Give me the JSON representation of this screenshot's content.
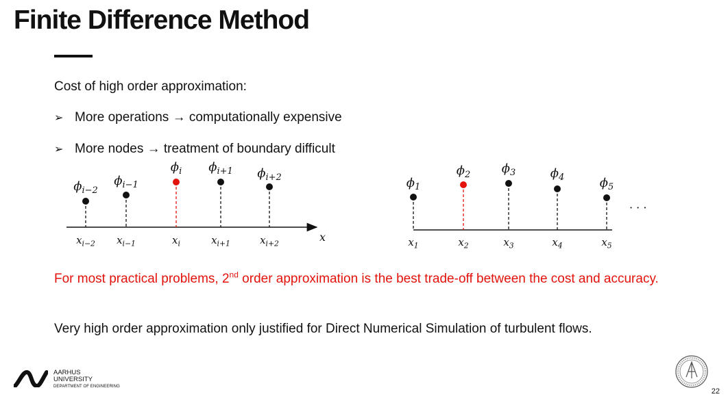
{
  "title": "Finite Difference Method",
  "intro": "Cost of high order approximation:",
  "bullets": [
    {
      "marker": "➢",
      "text": "More operations → computationally expensive"
    },
    {
      "marker": "➢",
      "text": "More nodes → treatment of boundary difficult"
    }
  ],
  "highlight": {
    "before": "For most practical problems, 2",
    "sup": "nd",
    "after": " order approximation is the best trade-off between the cost and accuracy."
  },
  "paragraph": "Very high order approximation only justified for Direct Numerical Simulation of turbulent flows.",
  "diagram_left": {
    "axis_label": "x",
    "nodes": [
      {
        "phi": "ϕi−2",
        "x": "xi−2",
        "highlight": false
      },
      {
        "phi": "ϕi−1",
        "x": "xi−1",
        "highlight": false
      },
      {
        "phi": "ϕi",
        "x": "xi",
        "highlight": true
      },
      {
        "phi": "ϕi+1",
        "x": "xi+1",
        "highlight": false
      },
      {
        "phi": "ϕi+2",
        "x": "xi+2",
        "highlight": false
      }
    ]
  },
  "diagram_right": {
    "ellipsis": "· · ·",
    "nodes": [
      {
        "phi": "ϕ1",
        "x": "x1",
        "highlight": false
      },
      {
        "phi": "ϕ2",
        "x": "x2",
        "highlight": true
      },
      {
        "phi": "ϕ3",
        "x": "x3",
        "highlight": false
      },
      {
        "phi": "ϕ4",
        "x": "x4",
        "highlight": false
      },
      {
        "phi": "ϕ5",
        "x": "x5",
        "highlight": false
      }
    ]
  },
  "colors": {
    "highlight": "#e3120b",
    "text": "#111111"
  },
  "logo": {
    "line1": "AARHUS",
    "line2": "UNIVERSITY",
    "line3": "DEPARTMENT OF ENGINEERING"
  },
  "page_number": "22"
}
